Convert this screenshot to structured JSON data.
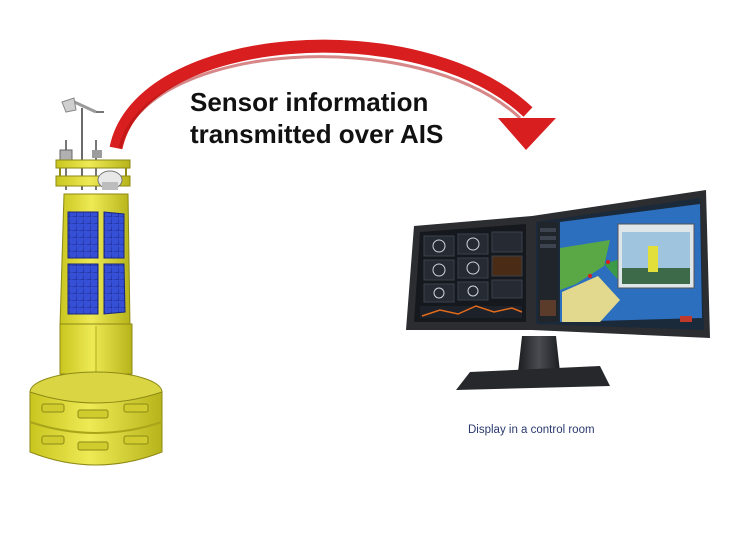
{
  "diagram": {
    "headline_line1": "Sensor information",
    "headline_line2": "transmitted over AIS",
    "caption": "Display in a control room",
    "colors": {
      "arrow": "#d81e1e",
      "buoy_body": "#e3df3a",
      "solar_panel": "#2f45c9",
      "monitor_frame": "#2b2d31",
      "caption_text": "#2a3a6e"
    },
    "icons": {
      "arrow": "curved-arrow-icon",
      "buoy": "buoy-icon",
      "monitor": "dual-monitor-icon"
    }
  }
}
